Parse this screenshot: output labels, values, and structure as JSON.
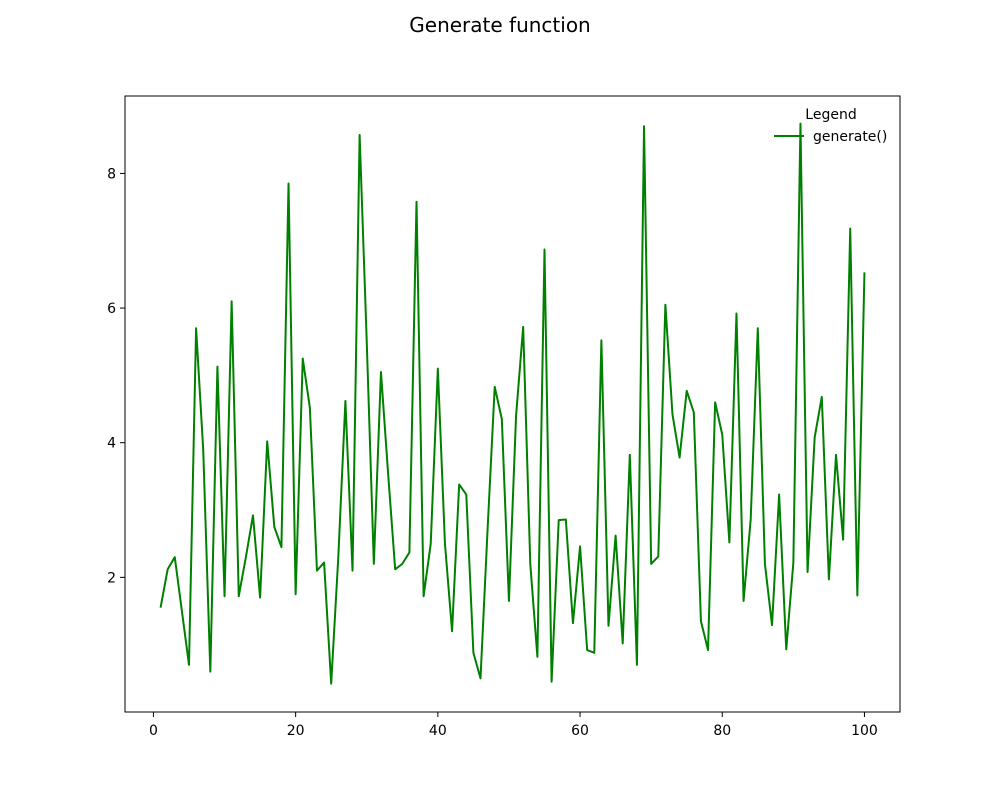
{
  "figure": {
    "title": "Generate function"
  },
  "chart_data": {
    "type": "line",
    "title": "Generate function",
    "xlabel": "",
    "ylabel": "",
    "xlim": [
      -4.0,
      105.0
    ],
    "ylim": [
      0.0,
      9.15
    ],
    "xticks": [
      0,
      20,
      40,
      60,
      80,
      100
    ],
    "yticks": [
      2,
      4,
      6,
      8
    ],
    "grid": false,
    "legend": {
      "title": "Legend",
      "position": "top-right"
    },
    "series": [
      {
        "name": "generate()",
        "color": "#008000",
        "x": [
          1,
          2,
          3,
          4,
          5,
          6,
          7,
          8,
          9,
          10,
          11,
          12,
          13,
          14,
          15,
          16,
          17,
          18,
          19,
          20,
          21,
          22,
          23,
          24,
          25,
          26,
          27,
          28,
          29,
          30,
          31,
          32,
          33,
          34,
          35,
          36,
          37,
          38,
          39,
          40,
          41,
          42,
          43,
          44,
          45,
          46,
          47,
          48,
          49,
          50,
          51,
          52,
          53,
          54,
          55,
          56,
          57,
          58,
          59,
          60,
          61,
          62,
          63,
          64,
          65,
          66,
          67,
          68,
          69,
          70,
          71,
          72,
          73,
          74,
          75,
          76,
          77,
          78,
          79,
          80,
          81,
          82,
          83,
          84,
          85,
          86,
          87,
          88,
          89,
          90,
          91,
          92,
          93,
          94,
          95,
          96,
          97,
          98,
          99,
          100
        ],
        "y": [
          1.55,
          2.12,
          2.3,
          1.5,
          0.7,
          5.7,
          3.9,
          0.6,
          5.13,
          1.72,
          6.1,
          1.72,
          2.3,
          2.92,
          1.7,
          4.02,
          2.75,
          2.45,
          7.85,
          1.75,
          5.25,
          4.52,
          2.1,
          2.22,
          0.42,
          2.3,
          4.62,
          2.1,
          8.57,
          5.5,
          2.2,
          5.05,
          3.55,
          2.12,
          2.2,
          2.37,
          7.58,
          1.72,
          2.5,
          5.1,
          2.5,
          1.2,
          3.38,
          3.23,
          0.88,
          0.5,
          2.72,
          4.83,
          4.35,
          1.65,
          4.4,
          5.72,
          2.2,
          0.82,
          6.87,
          0.45,
          2.85,
          2.86,
          1.32,
          2.46,
          0.92,
          0.88,
          5.52,
          1.28,
          2.62,
          1.02,
          3.82,
          0.7,
          8.7,
          2.2,
          2.31,
          6.05,
          4.42,
          3.78,
          4.77,
          4.45,
          1.35,
          0.92,
          4.6,
          4.12,
          2.52,
          5.92,
          1.65,
          2.86,
          5.7,
          2.2,
          1.29,
          3.23,
          0.93,
          2.22,
          8.74,
          2.08,
          4.08,
          4.68,
          1.97,
          3.82,
          2.56,
          7.18,
          1.73,
          6.53
        ]
      }
    ]
  }
}
